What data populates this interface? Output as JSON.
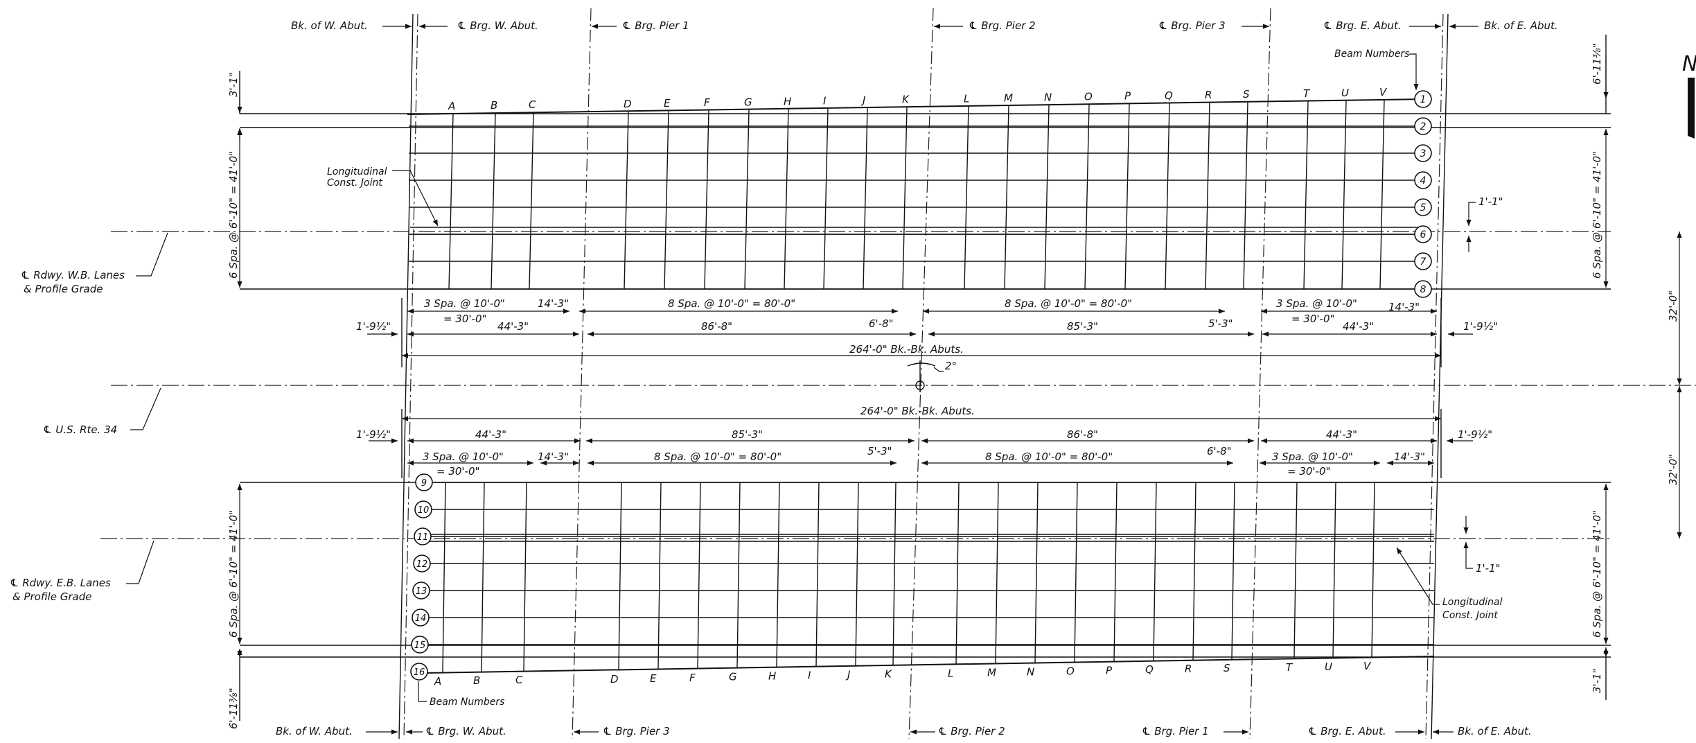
{
  "drawing": {
    "north_mark": "N",
    "bearing_lines": [
      {
        "label": "Bk. of W. Abut."
      },
      {
        "label": "℄ Brg. W. Abut."
      },
      {
        "label": "℄ Brg. Pier 1"
      },
      {
        "label": "℄ Brg. Pier 2"
      },
      {
        "label": "℄ Brg. Pier 3"
      },
      {
        "label": "℄ Brg. E. Abut."
      },
      {
        "label": "Bk. of E. Abut."
      }
    ],
    "bottom_bearing_lines": [
      {
        "label": "Bk. of W. Abut."
      },
      {
        "label": "℄ Brg. W. Abut."
      },
      {
        "label": "℄ Brg. Pier 3"
      },
      {
        "label": "℄ Brg. Pier 2"
      },
      {
        "label": "℄ Brg. Pier 1"
      },
      {
        "label": "℄ Brg. E. Abut."
      },
      {
        "label": "Bk. of E. Abut."
      }
    ],
    "beam_numbers_label": "Beam Numbers",
    "beam_numbers_wb": [
      "1",
      "2",
      "3",
      "4",
      "5",
      "6",
      "7",
      "8"
    ],
    "beam_numbers_eb": [
      "9",
      "10",
      "11",
      "12",
      "13",
      "14",
      "15",
      "16"
    ],
    "diaphragm_letters": [
      "A",
      "B",
      "C",
      "D",
      "E",
      "F",
      "G",
      "H",
      "I",
      "J",
      "K",
      "L",
      "M",
      "N",
      "O",
      "P",
      "Q",
      "R",
      "S",
      "T",
      "U",
      "V"
    ],
    "joint_label_line1": "Longitudinal",
    "joint_label_line2": "Const. Joint",
    "wb_centerline": {
      "line1": "℄ Rdwy. W.B. Lanes",
      "line2": "& Profile Grade"
    },
    "eb_centerline": {
      "line1": "℄ Rdwy. E.B. Lanes",
      "line2": "& Profile Grade"
    },
    "route_centerline": "℄ U.S. Rte. 34",
    "skew_angle": "2°",
    "top_dims": {
      "left_spa": "3 Spa. @ 10'-0\"",
      "left_spa_total": "= 30'-0\"",
      "left_end": "14'-3\"",
      "left_overall": "44'-3\"",
      "span2_spa": "8 Spa. @ 10'-0\" = 80'-0\"",
      "span2_end": "6'-8\"",
      "span2_overall": "86'-8\"",
      "span3_spa": "8 Spa. @ 10'-0\" = 80'-0\"",
      "span3_end": "5'-3\"",
      "span3_overall": "85'-3\"",
      "right_spa": "3 Spa. @ 10'-0\"",
      "right_spa_total": "= 30'-0\"",
      "right_end": "14'-3\"",
      "right_overall": "44'-3\"",
      "abut_offset_left": "1'-9½\"",
      "abut_offset_right": "1'-9½\"",
      "total": "264'-0\" Bk.-Bk. Abuts."
    },
    "bottom_dims": {
      "total": "264'-0\" Bk.-Bk. Abuts.",
      "abut_offset_left": "1'-9½\"",
      "abut_offset_right": "1'-9½\"",
      "span1_overall": "44'-3\"",
      "span2_overall": "85'-3\"",
      "span3_overall": "86'-8\"",
      "span4_overall": "44'-3\"",
      "left_spa": "3 Spa. @ 10'-0\"",
      "left_spa_total": "= 30'-0\"",
      "left_end": "14'-3\"",
      "span2_end": "5'-3\"",
      "span2_spa": "8 Spa. @ 10'-0\" = 80'-0\"",
      "span3_spa": "8 Spa. @ 10'-0\" = 80'-0\"",
      "span3_end": "6'-8\"",
      "right_spa": "3 Spa. @ 10'-0\"",
      "right_spa_total": "= 30'-0\"",
      "right_end": "14'-3\""
    },
    "vertical_dims": {
      "wb_top_overhang": "3'-1\"",
      "wb_beam_spacing": "6 Spa. @ 6'-10\" = 41'-0\"",
      "wb_right_overhang": "6'-11⅜\"",
      "wb_right_spacing": "6 Spa. @ 6'-10\" = 41'-0\"",
      "wb_joint_offset": "1'-1\"",
      "half_width_top": "32'-0\"",
      "half_width_bottom": "32'-0\"",
      "eb_left_spacing": "6 Spa. @ 6'-10\" = 41'-0\"",
      "eb_left_overhang": "6'-11⅜\"",
      "eb_right_spacing": "6 Spa. @ 6'-10\" = 41'-0\"",
      "eb_right_overhang": "3'-1\"",
      "eb_joint_offset": "1'-1\""
    }
  }
}
